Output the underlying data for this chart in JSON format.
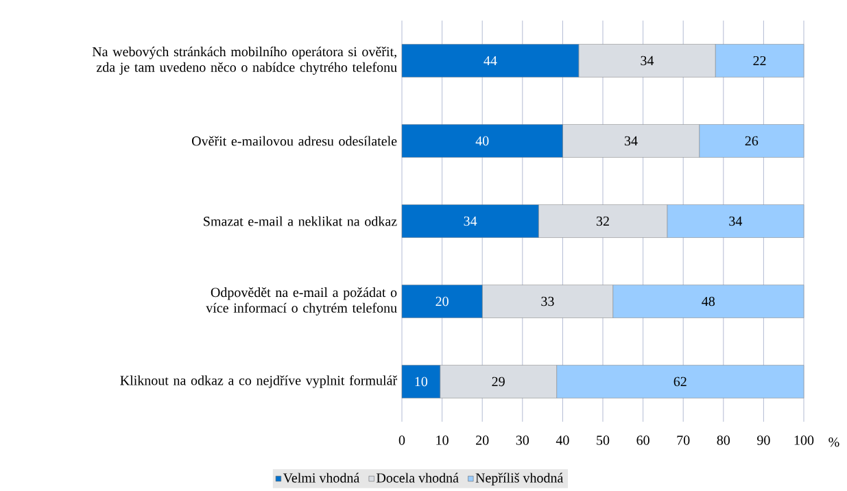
{
  "chart_data": {
    "type": "bar",
    "orientation": "horizontal",
    "stacked": true,
    "categories": [
      "Na webových stránkách mobilního operátora si ověřit, zda je tam uvedeno něco o nabídce chytrého telefonu",
      "Ověřit e-mailovou adresu odesílatele",
      "Smazat e-mail a neklikat na odkaz",
      "Odpovědět na e-mail a požádat o více informací o chytrém telefonu",
      "Kliknout na odkaz a co nejdříve vyplnit formulář"
    ],
    "series": [
      {
        "name": "Velmi vhodná",
        "color": "#0070cc",
        "values": [
          44,
          40,
          34,
          20,
          9.5
        ],
        "value_labels": [
          "44",
          "40",
          "34",
          "20",
          "10"
        ]
      },
      {
        "name": "Docela vhodná",
        "color": "#d9dde3",
        "values": [
          34,
          34,
          32,
          32.5,
          29
        ],
        "value_labels": [
          "34",
          "34",
          "32",
          "33",
          "29"
        ]
      },
      {
        "name": "Nepříliš vhodná",
        "color": "#99ccff",
        "values": [
          22,
          26,
          34,
          47.5,
          61.5
        ],
        "value_labels": [
          "22",
          "26",
          "34",
          "48",
          "62"
        ]
      }
    ],
    "xlabel": "%",
    "xlim": [
      0,
      100
    ],
    "xticks": [
      0,
      10,
      20,
      30,
      40,
      50,
      60,
      70,
      80,
      90,
      100
    ],
    "grid": "x",
    "legend": "bottom"
  }
}
